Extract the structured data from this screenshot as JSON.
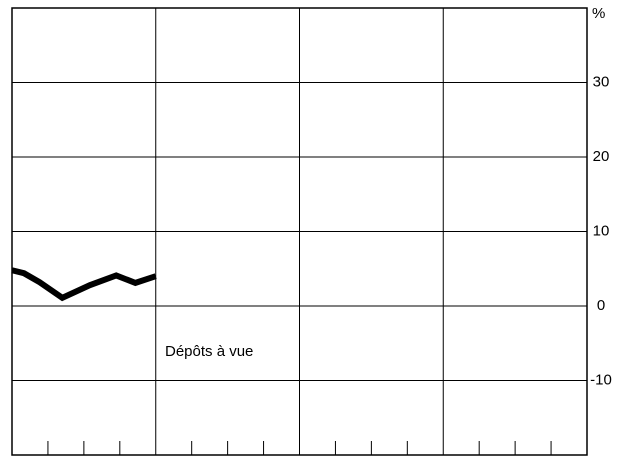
{
  "chart_data": {
    "type": "line",
    "unit_label": "%",
    "annotation": "Dépôts à vue",
    "x": [
      0,
      1,
      2.3,
      4.2,
      6.5,
      8.7,
      10.3,
      12
    ],
    "series": [
      {
        "name": "Dépôts à vue",
        "color": "#000000",
        "values": [
          4.8,
          4.4,
          3.2,
          1.1,
          2.8,
          4.1,
          3.1,
          4.0
        ]
      }
    ],
    "xlim": [
      0,
      48
    ],
    "xticks": [
      3,
      6,
      9,
      15,
      18,
      21,
      27,
      30,
      33,
      39,
      42,
      45
    ],
    "xgrid": [
      12,
      24,
      36
    ],
    "ylim": [
      -20,
      40
    ],
    "yticks": [
      -10,
      0,
      10,
      20,
      30
    ],
    "grid": true
  }
}
